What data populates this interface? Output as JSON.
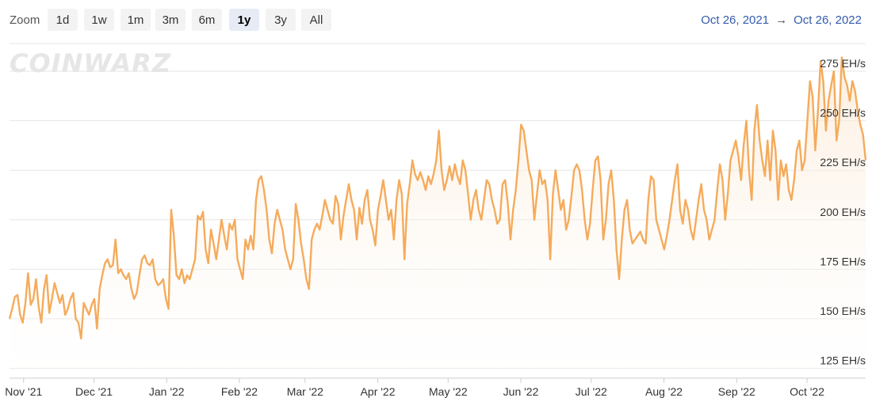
{
  "toolbar": {
    "zoom_label": "Zoom",
    "buttons": [
      "1d",
      "1w",
      "1m",
      "3m",
      "6m",
      "1y",
      "3y",
      "All"
    ],
    "active": "1y",
    "range_from": "Oct 26, 2021",
    "range_arrow": "→",
    "range_to": "Oct 26, 2022"
  },
  "watermark": "COINWARZ",
  "colors": {
    "line": "#f5ab5b",
    "fill_top": "#fbe4cc",
    "grid": "#e6e6e6",
    "axis_text": "#333333",
    "range_text": "#335cad"
  },
  "chart_data": {
    "type": "line",
    "title": "",
    "xlabel": "",
    "ylabel": "",
    "x_start": "2021-10-26",
    "x_end": "2022-10-26",
    "x_ticks": [
      "Nov '21",
      "Dec '21",
      "Jan '22",
      "Feb '22",
      "Mar '22",
      "Apr '22",
      "May '22",
      "Jun '22",
      "Jul '22",
      "Aug '22",
      "Sep '22",
      "Oct '22"
    ],
    "y_ticks": [
      "125 EH/s",
      "150 EH/s",
      "175 EH/s",
      "200 EH/s",
      "225 EH/s",
      "250 EH/s",
      "275 EH/s"
    ],
    "ylim": [
      120,
      289
    ],
    "grid": true,
    "legend": false,
    "series": [
      {
        "values": [
          150,
          155,
          161,
          162,
          152,
          148,
          158,
          173,
          157,
          160,
          170,
          156,
          148,
          165,
          172,
          153,
          160,
          168,
          163,
          158,
          162,
          152,
          155,
          160,
          163,
          150,
          148,
          140,
          158,
          155,
          152,
          157,
          160,
          145,
          165,
          172,
          178,
          180,
          176,
          177,
          190,
          173,
          175,
          172,
          170,
          173,
          165,
          160,
          163,
          172,
          180,
          182,
          178,
          177,
          180,
          170,
          167,
          168,
          170,
          160,
          155,
          205,
          192,
          172,
          170,
          175,
          168,
          172,
          170,
          175,
          180,
          202,
          200,
          204,
          185,
          178,
          195,
          188,
          180,
          190,
          200,
          192,
          185,
          198,
          195,
          200,
          180,
          175,
          170,
          190,
          185,
          192,
          185,
          210,
          220,
          222,
          215,
          205,
          190,
          183,
          198,
          205,
          200,
          195,
          185,
          180,
          175,
          180,
          208,
          200,
          188,
          180,
          170,
          165,
          190,
          195,
          198,
          195,
          202,
          210,
          205,
          200,
          198,
          212,
          208,
          190,
          202,
          210,
          218,
          210,
          205,
          190,
          206,
          198,
          210,
          215,
          200,
          195,
          187,
          205,
          212,
          220,
          210,
          200,
          205,
          190,
          210,
          220,
          213,
          180,
          208,
          218,
          230,
          223,
          220,
          224,
          220,
          215,
          222,
          218,
          223,
          230,
          245,
          225,
          215,
          220,
          227,
          220,
          228,
          222,
          218,
          230,
          225,
          213,
          200,
          210,
          215,
          205,
          200,
          210,
          220,
          218,
          210,
          205,
          198,
          200,
          218,
          220,
          208,
          190,
          205,
          215,
          230,
          248,
          245,
          235,
          225,
          220,
          200,
          213,
          225,
          218,
          220,
          210,
          180,
          213,
          225,
          215,
          205,
          210,
          195,
          200,
          212,
          225,
          228,
          225,
          215,
          200,
          190,
          198,
          215,
          230,
          232,
          220,
          190,
          200,
          218,
          225,
          210,
          185,
          170,
          190,
          205,
          210,
          195,
          188,
          190,
          192,
          194,
          190,
          188,
          210,
          222,
          220,
          200,
          195,
          190,
          185,
          192,
          200,
          210,
          220,
          228,
          205,
          198,
          210,
          205,
          195,
          190,
          200,
          210,
          218,
          205,
          200,
          190,
          195,
          200,
          215,
          228,
          220,
          200,
          213,
          230,
          235,
          240,
          232,
          220,
          238,
          250,
          225,
          210,
          245,
          258,
          240,
          230,
          222,
          240,
          220,
          245,
          235,
          210,
          230,
          222,
          228,
          215,
          210,
          220,
          235,
          240,
          225,
          230,
          250,
          270,
          262,
          235,
          255,
          280,
          270,
          245,
          260,
          268,
          275,
          240,
          250,
          282,
          272,
          268,
          260,
          270,
          265,
          255,
          248,
          243,
          230
        ]
      }
    ]
  }
}
